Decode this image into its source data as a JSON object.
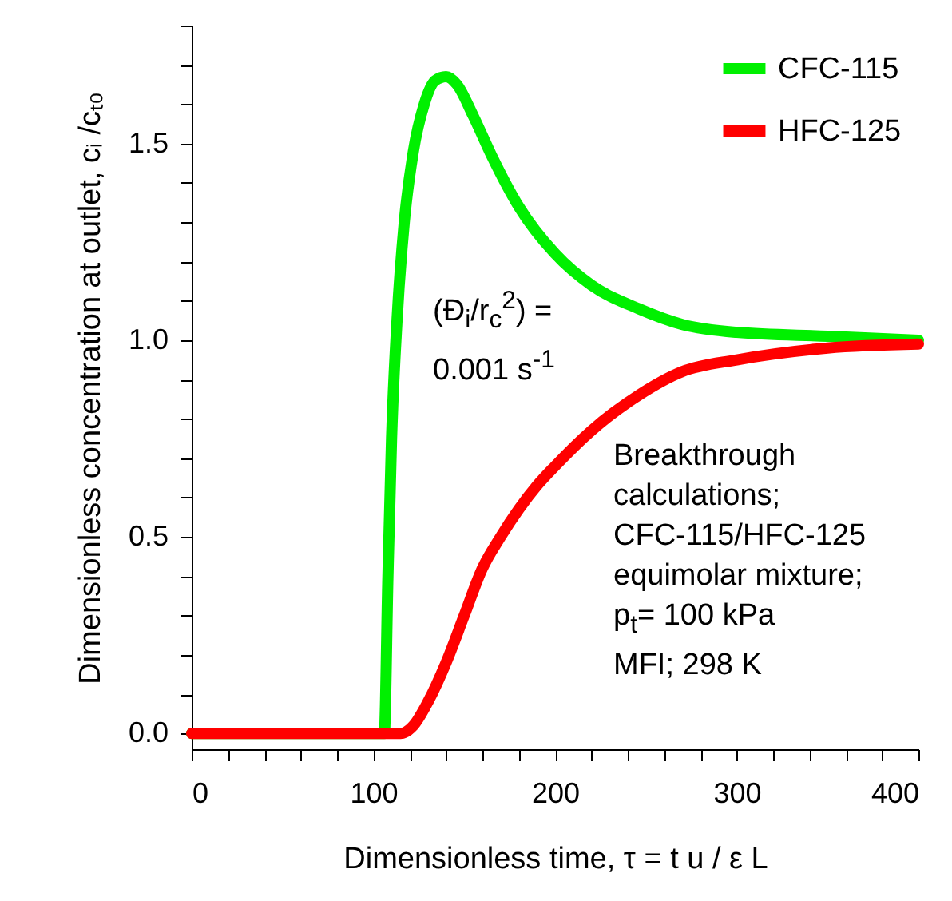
{
  "chart_data": {
    "type": "line",
    "xlabel": "Dimensionless time, τ = t u / ε L",
    "ylabel": "Dimensionless concentration at outlet, cᵢ /cₜ₀",
    "xlim": [
      0,
      400
    ],
    "ylim": [
      -0.04,
      1.8
    ],
    "xticks": [
      0,
      {
        "value": 20,
        "label": null
      },
      {
        "value": 40,
        "label": null
      },
      {
        "value": 60,
        "label": null
      },
      {
        "value": 80,
        "label": null
      },
      100,
      {
        "value": 120,
        "label": null
      },
      {
        "value": 140,
        "label": null
      },
      {
        "value": 160,
        "label": null
      },
      {
        "value": 180,
        "label": null
      },
      200,
      {
        "value": 220,
        "label": null
      },
      {
        "value": 240,
        "label": null
      },
      {
        "value": 260,
        "label": null
      },
      {
        "value": 280,
        "label": null
      },
      300,
      {
        "value": 320,
        "label": null
      },
      {
        "value": 340,
        "label": null
      },
      {
        "value": 360,
        "label": null
      },
      {
        "value": 380,
        "label": null
      },
      400
    ],
    "yticks": [
      {
        "value": 0,
        "label": "0.0"
      },
      {
        "value": 0.1,
        "label": null
      },
      {
        "value": 0.2,
        "label": null
      },
      {
        "value": 0.3,
        "label": null
      },
      {
        "value": 0.4,
        "label": null
      },
      {
        "value": 0.5,
        "label": "0.5"
      },
      {
        "value": 0.6,
        "label": null
      },
      {
        "value": 0.7,
        "label": null
      },
      {
        "value": 0.8,
        "label": null
      },
      {
        "value": 0.9,
        "label": null
      },
      {
        "value": 1.0,
        "label": "1.0"
      },
      {
        "value": 1.1,
        "label": null
      },
      {
        "value": 1.2,
        "label": null
      },
      {
        "value": 1.3,
        "label": null
      },
      {
        "value": 1.4,
        "label": null
      },
      {
        "value": 1.5,
        "label": "1.5"
      },
      {
        "value": 1.6,
        "label": null
      },
      {
        "value": 1.7,
        "label": null
      },
      {
        "value": 1.8,
        "label": null
      }
    ],
    "grid": false,
    "legend": "top right",
    "marker": "none",
    "line_style": "solid",
    "series": [
      {
        "name": "CFC-115",
        "color": "#00f000",
        "x": [
          0,
          106,
          108,
          110,
          113,
          117,
          122,
          128,
          134,
          140,
          146,
          155,
          165,
          180,
          200,
          220,
          246,
          270,
          300,
          350,
          400
        ],
        "values": [
          0,
          0,
          0.4,
          0.75,
          1.05,
          1.3,
          1.48,
          1.6,
          1.66,
          1.67,
          1.65,
          1.57,
          1.47,
          1.34,
          1.22,
          1.14,
          1.08,
          1.04,
          1.02,
          1.01,
          1.0
        ]
      },
      {
        "name": "HFC-125",
        "color": "#ff0000",
        "x": [
          0,
          100,
          115,
          122,
          130,
          140,
          150,
          160,
          170,
          180,
          190,
          200,
          220,
          246,
          270,
          300,
          350,
          400
        ],
        "values": [
          0,
          0,
          0,
          0.02,
          0.08,
          0.18,
          0.3,
          0.42,
          0.5,
          0.57,
          0.63,
          0.68,
          0.77,
          0.86,
          0.92,
          0.95,
          0.98,
          0.99
        ]
      }
    ],
    "annotations": [
      "(Đ$_{i}$/r$_{c}$$^{2}$) =\n0.001 s$^{-1}$",
      "Breakthrough\ncalculations;\nCFC-115/HFC-125\nequimolar mixture;\np$_{t}$= 100 kPa\nMFI; 298 K"
    ]
  }
}
